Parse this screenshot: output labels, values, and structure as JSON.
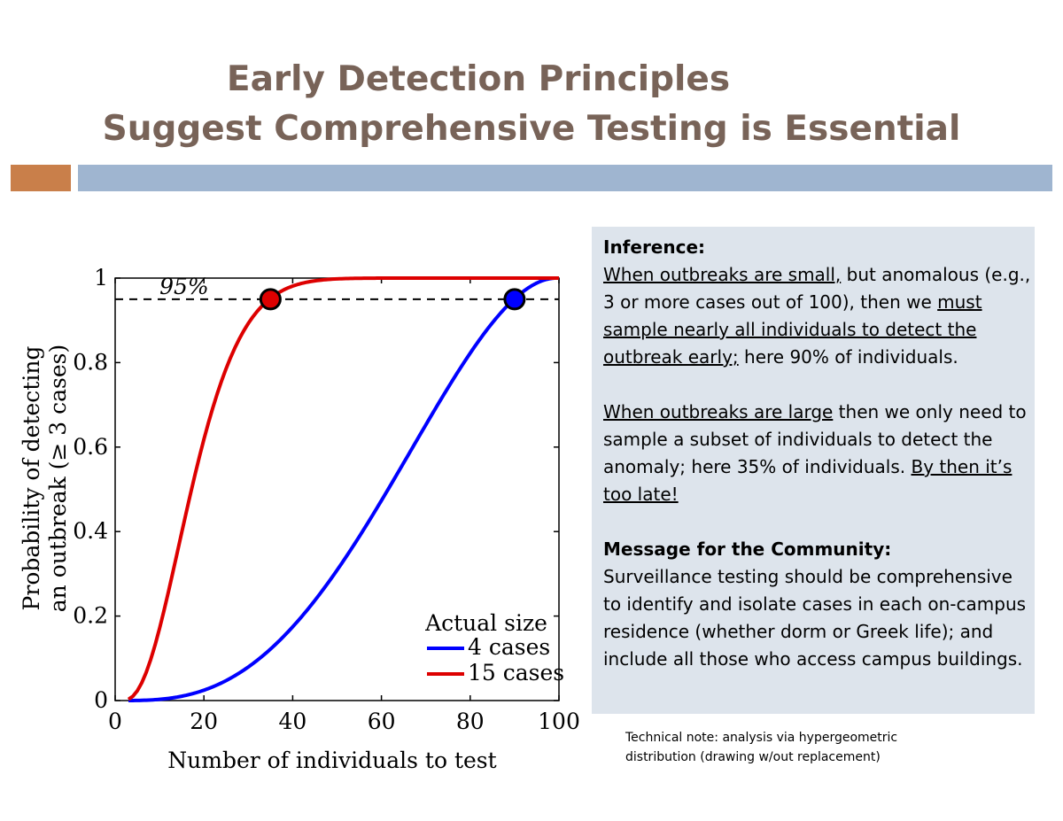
{
  "slide": {
    "title_line1": "Early Detection Principles",
    "title_line2": "Suggest Comprehensive Testing is Essential",
    "accent_orange": "#c97f4a",
    "accent_blue": "#9fb5d0",
    "title_color": "#786358"
  },
  "chart_data": {
    "type": "line",
    "xlabel": "Number of individuals to test",
    "ylabel_line1": "Probability of detecting",
    "ylabel_line2": "an outbreak (≥ 3 cases)",
    "xlim": [
      0,
      100
    ],
    "ylim": [
      0,
      1
    ],
    "xticks": [
      "0",
      "20",
      "40",
      "60",
      "80",
      "100"
    ],
    "yticks": [
      "0",
      "0.2",
      "0.4",
      "0.6",
      "0.8",
      "1"
    ],
    "grid": false,
    "legend_title": "Actual size",
    "legend_position": "bottom-right",
    "series": [
      {
        "name": "4 cases",
        "color": "#0000ff",
        "outbreak_size": 4
      },
      {
        "name": "15 cases",
        "color": "#dd0000",
        "outbreak_size": 15
      }
    ],
    "threshold": {
      "value": 0.95,
      "label": "95%",
      "style": "dashed"
    },
    "markers": [
      {
        "series": "15 cases",
        "x": 35,
        "y": 0.95,
        "color": "#dd0000"
      },
      {
        "series": "4 cases",
        "x": 90,
        "y": 0.95,
        "color": "#0000ff"
      }
    ]
  },
  "panel": {
    "inference_head": "Inference:",
    "p1_u1": "When outbreaks are small,",
    "p1_t1": " but anomalous (e.g., 3 or more cases out of 100), then we ",
    "p1_u2": "must sample nearly all individuals to detect the outbreak early;",
    "p1_t2": " here 90% of individuals.",
    "p2_u1": "When outbreaks are large",
    "p2_t1": " then we only need to sample a subset of individuals to detect the anomaly; here 35% of individuals. ",
    "p2_u2": "By then it’s too late!",
    "message_head": "Message for the Community:",
    "message_body": "Surveillance testing should be comprehensive to identify and isolate cases in each on-campus residence (whether dorm or Greek life); and include all those who access campus buildings."
  },
  "note": {
    "line1": "Technical note: analysis via hypergeometric",
    "line2": "distribution (drawing w/out replacement)"
  }
}
